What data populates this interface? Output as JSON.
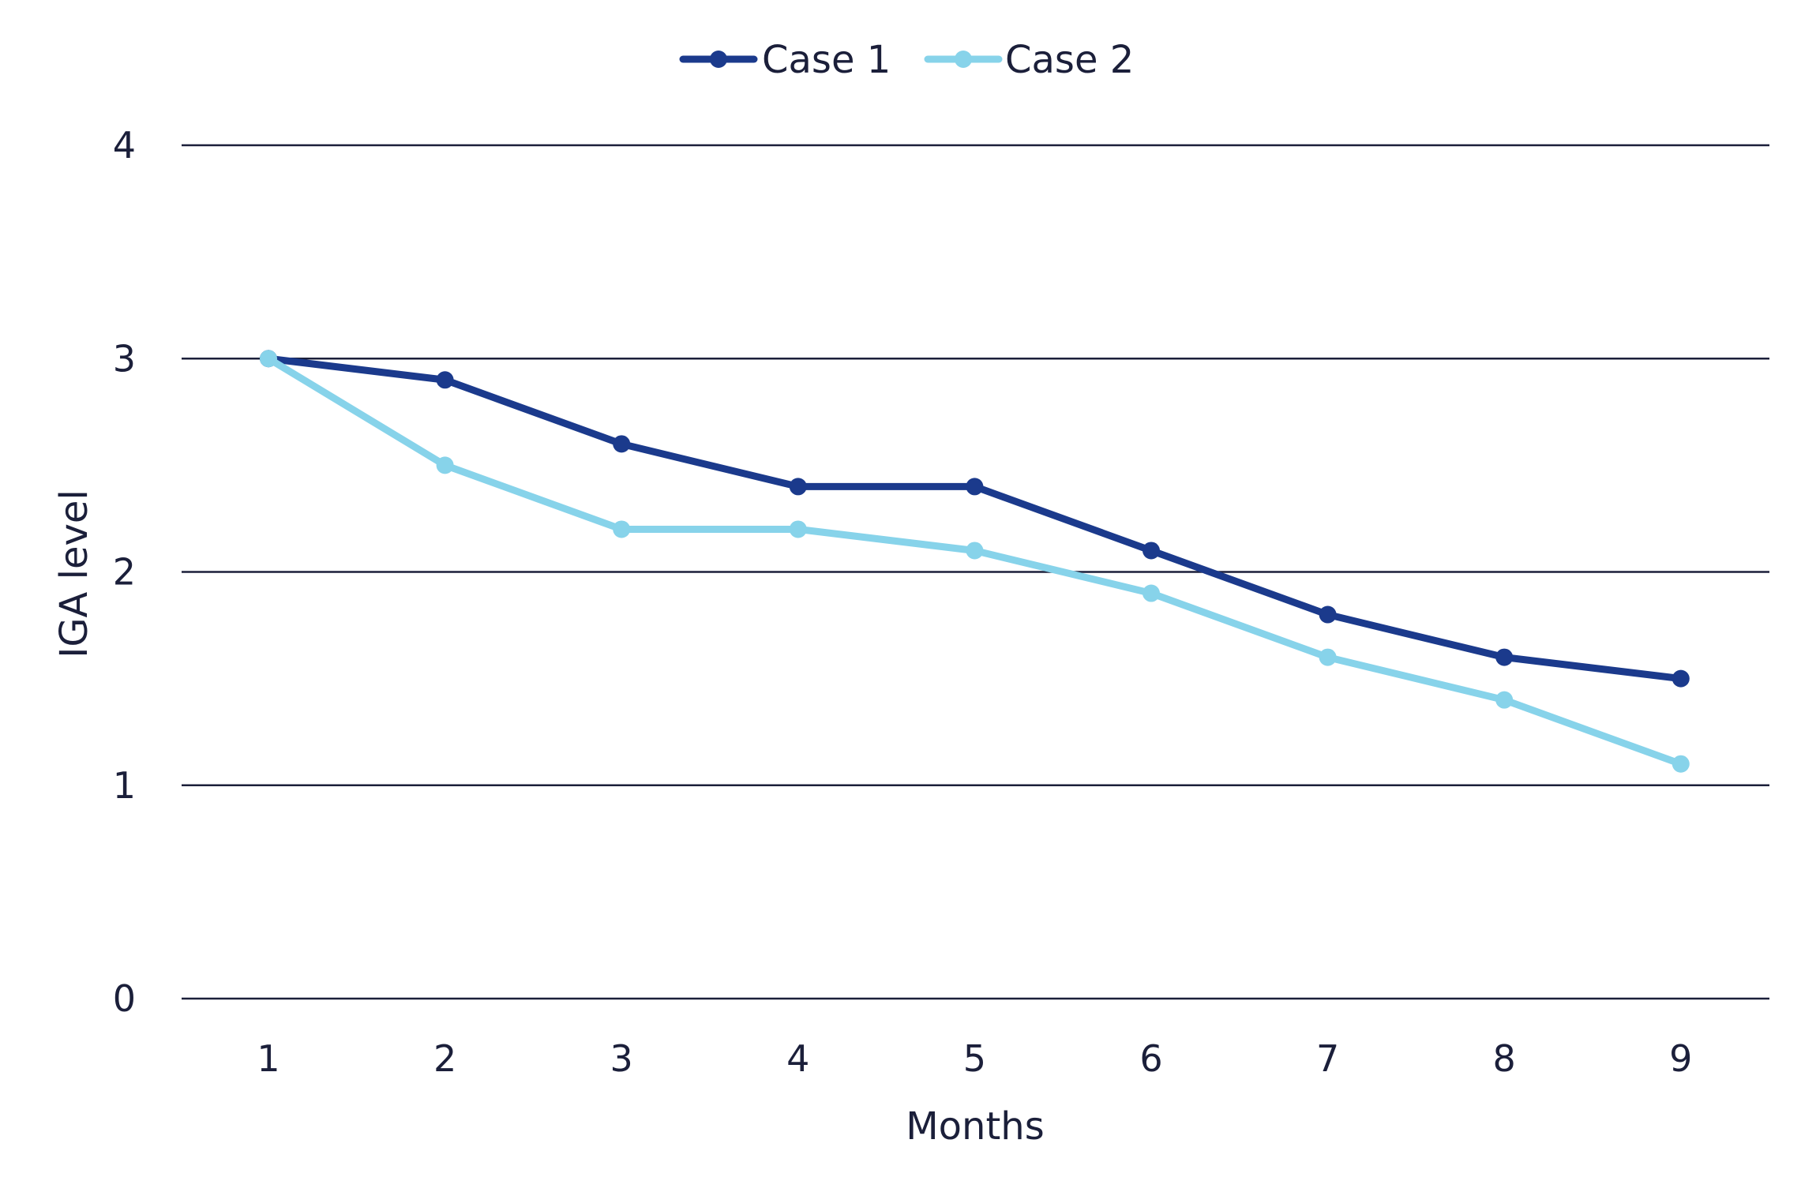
{
  "chart_data": {
    "type": "line",
    "title": "",
    "xlabel": "Months",
    "ylabel": "IGA level",
    "categories": [
      "1",
      "2",
      "3",
      "4",
      "5",
      "6",
      "7",
      "8",
      "9"
    ],
    "yticks": [
      "0",
      "1",
      "2",
      "3",
      "4"
    ],
    "ylim": [
      0,
      4
    ],
    "grid": true,
    "legend_position": "top-center",
    "series": [
      {
        "name": "Case 1",
        "color": "#1b3a8c",
        "values": [
          3.0,
          2.9,
          2.6,
          2.4,
          2.4,
          2.1,
          1.8,
          1.6,
          1.5
        ]
      },
      {
        "name": "Case 2",
        "color": "#87d3ea",
        "values": [
          3.0,
          2.5,
          2.2,
          2.2,
          2.1,
          1.9,
          1.6,
          1.4,
          1.1
        ]
      }
    ]
  }
}
